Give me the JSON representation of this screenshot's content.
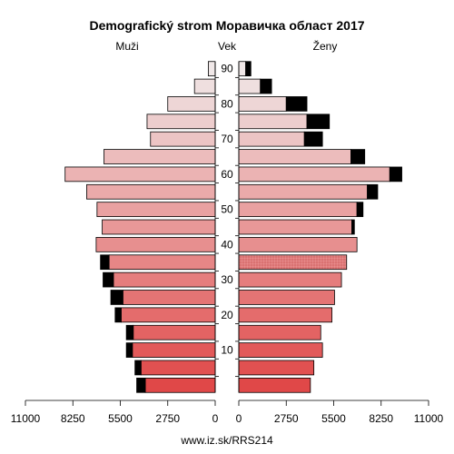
{
  "chart_data": {
    "type": "bar",
    "title": "Demografický strom Моравичка област 2017",
    "left_label": "Muži",
    "center_label": "Vek",
    "right_label": "Ženy",
    "footer": "www.iz.sk/RRS214",
    "age_groups": [
      "0-4",
      "5-9",
      "10-14",
      "15-19",
      "20-24",
      "25-29",
      "30-34",
      "35-39",
      "40-44",
      "45-49",
      "50-54",
      "55-59",
      "60-64",
      "65-69",
      "70-74",
      "75-79",
      "80-84",
      "85-89",
      "90+"
    ],
    "age_ticks": [
      "10",
      "20",
      "30",
      "40",
      "50",
      "60",
      "70",
      "80",
      "90"
    ],
    "age_tick_groups": [
      2,
      4,
      6,
      8,
      10,
      12,
      14,
      16,
      18
    ],
    "xlim": [
      0,
      11000
    ],
    "x_ticks_left": [
      "11000",
      "8250",
      "5500",
      "2750",
      "0"
    ],
    "x_ticks_right": [
      "0",
      "2750",
      "5500",
      "8250",
      "11000"
    ],
    "x_tick_values": [
      11000,
      8250,
      5500,
      2750,
      0
    ],
    "series": [
      {
        "name": "Muži",
        "base": [
          4050,
          4300,
          4800,
          4750,
          5450,
          5350,
          5900,
          6150,
          6900,
          6550,
          6850,
          7450,
          8700,
          6450,
          3750,
          3950,
          2750,
          1200,
          400
        ],
        "excess": [
          500,
          350,
          350,
          400,
          350,
          700,
          600,
          500,
          0,
          0,
          0,
          0,
          0,
          0,
          0,
          0,
          0,
          0,
          0
        ]
      },
      {
        "name": "Ženy",
        "base": [
          4150,
          4350,
          4850,
          4750,
          5400,
          5550,
          5950,
          6250,
          6850,
          6550,
          6850,
          7450,
          8750,
          6500,
          3800,
          3950,
          2750,
          1250,
          400
        ],
        "excess": [
          0,
          0,
          0,
          0,
          0,
          0,
          0,
          0,
          0,
          150,
          350,
          600,
          700,
          800,
          1050,
          1300,
          1200,
          650,
          300
        ]
      }
    ],
    "colors": {
      "young": "#e04848",
      "old": "#f0e8e8",
      "excess": "#000000",
      "pattern_fill": "#e07878"
    },
    "patterned_female_group": "35-39"
  }
}
